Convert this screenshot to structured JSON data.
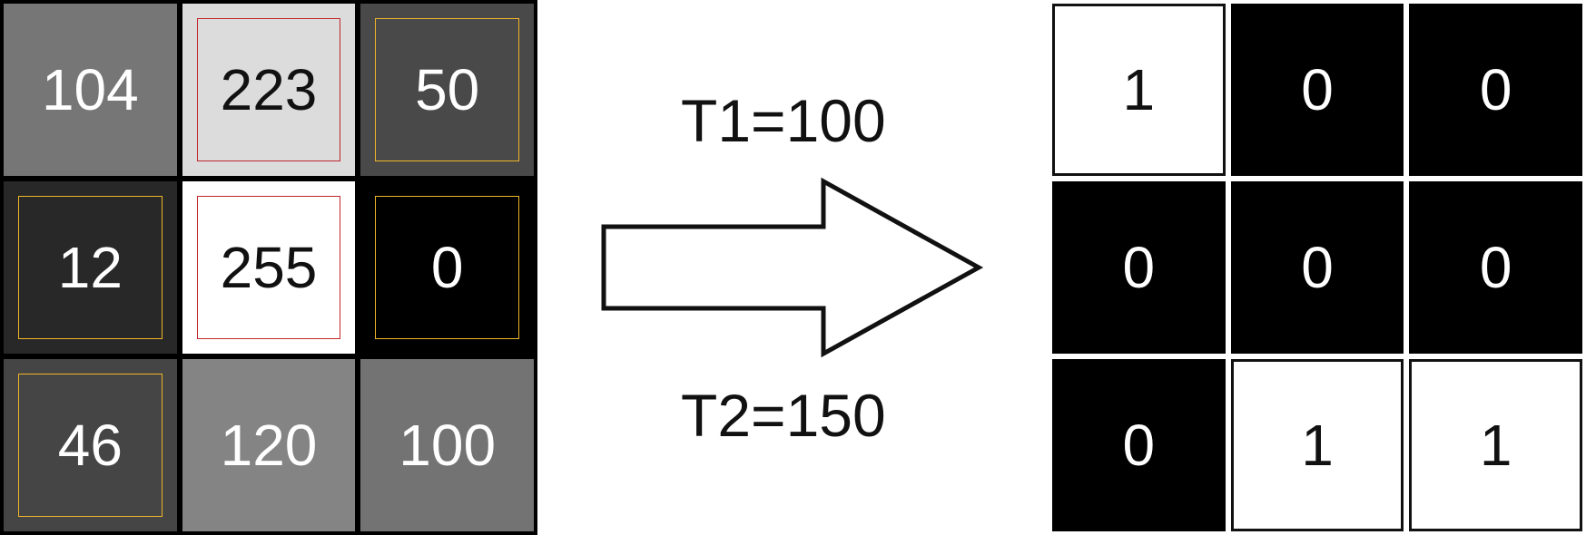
{
  "colors": {
    "highlight_strong": "#c0262c",
    "highlight_weak": "#f0b429",
    "binary_one": "#ffffff",
    "binary_zero": "#000000"
  },
  "input_matrix": [
    [
      {
        "value": "104",
        "gray": 104,
        "highlight": "none"
      },
      {
        "value": "223",
        "gray": 223,
        "highlight": "strong"
      },
      {
        "value": "50",
        "gray": 50,
        "highlight": "weak"
      }
    ],
    [
      {
        "value": "12",
        "gray": 12,
        "highlight": "weak"
      },
      {
        "value": "255",
        "gray": 255,
        "highlight": "strong"
      },
      {
        "value": "0",
        "gray": 0,
        "highlight": "weak"
      }
    ],
    [
      {
        "value": "46",
        "gray": 46,
        "highlight": "weak"
      },
      {
        "value": "120",
        "gray": 120,
        "highlight": "none"
      },
      {
        "value": "100",
        "gray": 100,
        "highlight": "none"
      }
    ]
  ],
  "thresholds": {
    "t1": "T1=100",
    "t2": "T2=150"
  },
  "output_matrix": [
    [
      "1",
      "0",
      "0"
    ],
    [
      "0",
      "0",
      "0"
    ],
    [
      "0",
      "1",
      "1"
    ]
  ]
}
